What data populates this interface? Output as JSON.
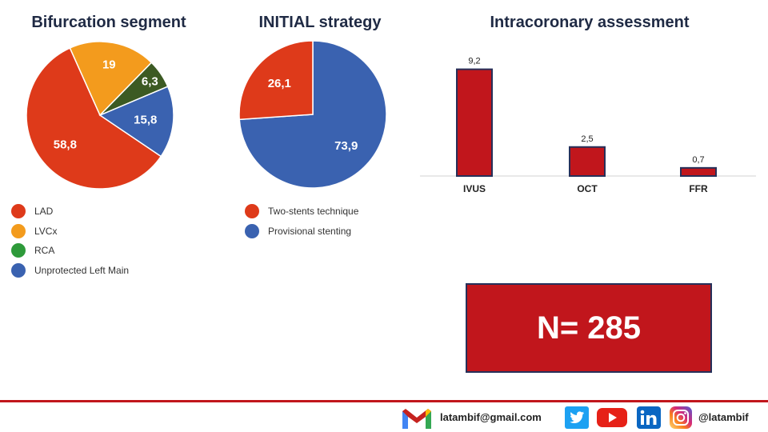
{
  "colors": {
    "lad": "#de3a1a",
    "lvcx": "#f39b1d",
    "rca_slice": "#3c5a23",
    "rca_legend": "#2e9a3a",
    "ulm": "#3a62b0",
    "bar_fill": "#c1161c",
    "bar_border": "#26305a",
    "footer_red": "#c1161c"
  },
  "chart_data": [
    {
      "type": "pie",
      "title": "Bifurcation segment",
      "slices": [
        {
          "label": "LAD",
          "value": 58.8,
          "display": "58,8",
          "color": "#de3a1a"
        },
        {
          "label": "LVCx",
          "value": 19,
          "display": "19",
          "color": "#f39b1d"
        },
        {
          "label": "RCA",
          "value": 6.3,
          "display": "6,3",
          "color": "#3c5a23"
        },
        {
          "label": "Unprotected Left Main",
          "value": 15.8,
          "display": "15,8",
          "color": "#3a62b0"
        }
      ],
      "legend": [
        {
          "label": "LAD",
          "color": "#de3a1a"
        },
        {
          "label": "LVCx",
          "color": "#f39b1d"
        },
        {
          "label": "RCA",
          "color": "#2e9a3a"
        },
        {
          "label": "Unprotected Left Main",
          "color": "#3a62b0"
        }
      ],
      "legend_position": "bottom"
    },
    {
      "type": "pie",
      "title": "INITIAL strategy",
      "slices": [
        {
          "label": "Provisional stenting",
          "value": 73.9,
          "display": "73,9",
          "color": "#3a62b0"
        },
        {
          "label": "Two-stents technique",
          "value": 26.1,
          "display": "26,1",
          "color": "#de3a1a"
        }
      ],
      "legend": [
        {
          "label": "Two-stents technique",
          "color": "#de3a1a"
        },
        {
          "label": "Provisional stenting",
          "color": "#3a62b0"
        }
      ],
      "legend_position": "bottom"
    },
    {
      "type": "bar",
      "title": "Intracoronary assessment",
      "categories": [
        "IVUS",
        "OCT",
        "FFR"
      ],
      "values": [
        9.2,
        2.5,
        0.7
      ],
      "value_labels": [
        "9,2",
        "2,5",
        "0,7"
      ],
      "ylim": [
        0,
        10
      ],
      "grid": false
    }
  ],
  "n_box": {
    "text": "N= 285"
  },
  "footer": {
    "email": "latambif@gmail.com",
    "handle": "@latambif",
    "icons": [
      "gmail-icon",
      "twitter-icon",
      "youtube-icon",
      "linkedin-icon",
      "instagram-icon"
    ]
  }
}
